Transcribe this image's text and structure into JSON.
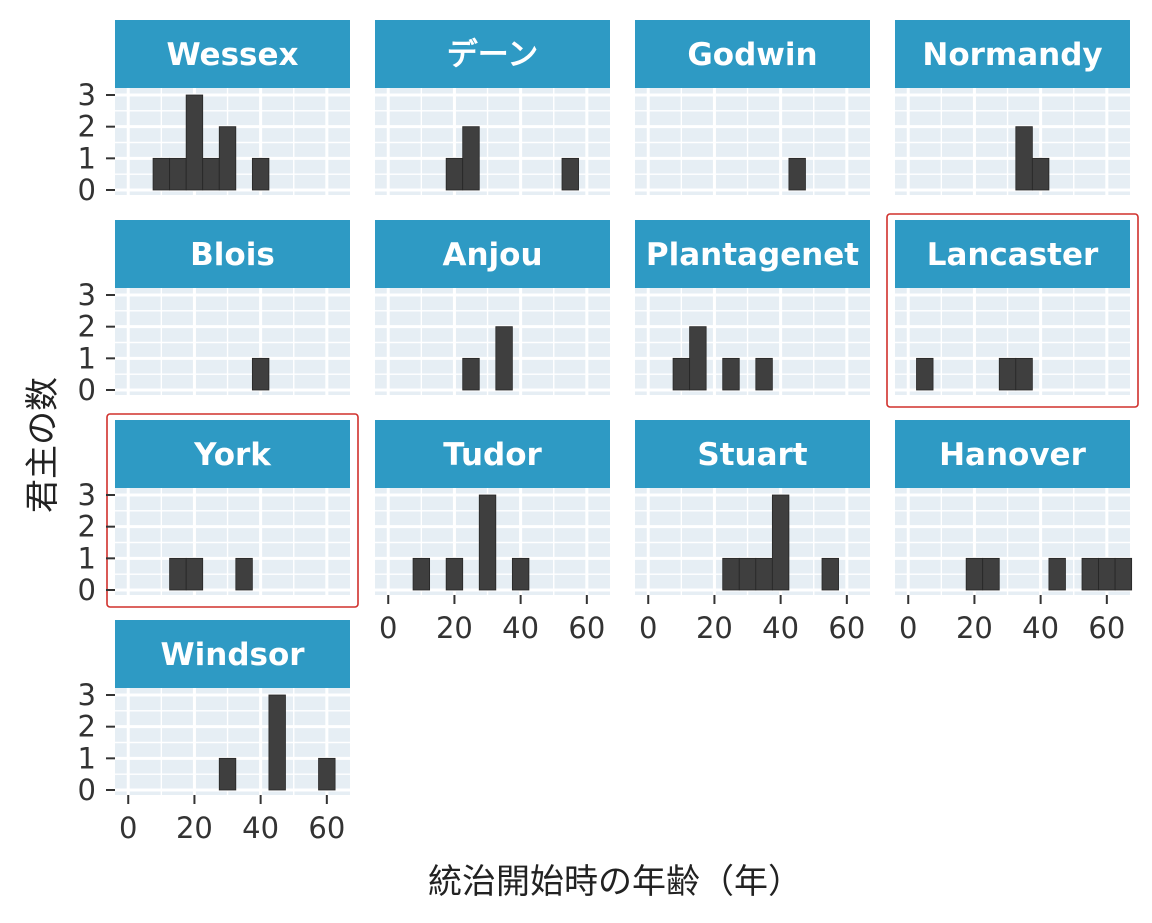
{
  "colors": {
    "strip": "#2e9ac4",
    "strip_text": "#ffffff",
    "panel_bg": "#e6eef4",
    "grid": "#ffffff",
    "bar": "#3f3f3f",
    "highlight": "#d0302c",
    "axis_text": "#333333"
  },
  "chart_data": {
    "type": "bar",
    "subtype": "faceted-histogram",
    "xlabel": "統治開始時の年齢（年）",
    "ylabel": "君主の数",
    "xlim": [
      -4,
      67
    ],
    "ylim": [
      0,
      3
    ],
    "x_ticks": [
      "0",
      "20",
      "40",
      "60"
    ],
    "y_ticks": [
      "0",
      "1",
      "2",
      "3"
    ],
    "bin_width": 5,
    "grid": true,
    "highlighted_panels": [
      "Lancaster",
      "York"
    ],
    "panels": [
      {
        "name": "Wessex",
        "bins": [
          {
            "x0": 7.5,
            "x1": 12.5,
            "count": 1
          },
          {
            "x0": 12.5,
            "x1": 17.5,
            "count": 1
          },
          {
            "x0": 17.5,
            "x1": 22.5,
            "count": 3
          },
          {
            "x0": 22.5,
            "x1": 27.5,
            "count": 1
          },
          {
            "x0": 27.5,
            "x1": 32.5,
            "count": 2
          },
          {
            "x0": 37.5,
            "x1": 42.5,
            "count": 1
          }
        ]
      },
      {
        "name": "デーン",
        "bins": [
          {
            "x0": 17.5,
            "x1": 22.5,
            "count": 1
          },
          {
            "x0": 22.5,
            "x1": 27.5,
            "count": 2
          },
          {
            "x0": 52.5,
            "x1": 57.5,
            "count": 1
          }
        ]
      },
      {
        "name": "Godwin",
        "bins": [
          {
            "x0": 42.5,
            "x1": 47.5,
            "count": 1
          }
        ]
      },
      {
        "name": "Normandy",
        "bins": [
          {
            "x0": 32.5,
            "x1": 37.5,
            "count": 2
          },
          {
            "x0": 37.5,
            "x1": 42.5,
            "count": 1
          }
        ]
      },
      {
        "name": "Blois",
        "bins": [
          {
            "x0": 37.5,
            "x1": 42.5,
            "count": 1
          }
        ]
      },
      {
        "name": "Anjou",
        "bins": [
          {
            "x0": 22.5,
            "x1": 27.5,
            "count": 1
          },
          {
            "x0": 32.5,
            "x1": 37.5,
            "count": 2
          }
        ]
      },
      {
        "name": "Plantagenet",
        "bins": [
          {
            "x0": 7.5,
            "x1": 12.5,
            "count": 1
          },
          {
            "x0": 12.5,
            "x1": 17.5,
            "count": 2
          },
          {
            "x0": 22.5,
            "x1": 27.5,
            "count": 1
          },
          {
            "x0": 32.5,
            "x1": 37.5,
            "count": 1
          }
        ]
      },
      {
        "name": "Lancaster",
        "bins": [
          {
            "x0": 2.5,
            "x1": 7.5,
            "count": 1
          },
          {
            "x0": 27.5,
            "x1": 32.5,
            "count": 1
          },
          {
            "x0": 32.5,
            "x1": 37.5,
            "count": 1
          }
        ]
      },
      {
        "name": "York",
        "bins": [
          {
            "x0": 12.5,
            "x1": 17.5,
            "count": 1
          },
          {
            "x0": 17.5,
            "x1": 22.5,
            "count": 1
          },
          {
            "x0": 32.5,
            "x1": 37.5,
            "count": 1
          }
        ]
      },
      {
        "name": "Tudor",
        "bins": [
          {
            "x0": 7.5,
            "x1": 12.5,
            "count": 1
          },
          {
            "x0": 17.5,
            "x1": 22.5,
            "count": 1
          },
          {
            "x0": 27.5,
            "x1": 32.5,
            "count": 3
          },
          {
            "x0": 37.5,
            "x1": 42.5,
            "count": 1
          }
        ]
      },
      {
        "name": "Stuart",
        "bins": [
          {
            "x0": 22.5,
            "x1": 27.5,
            "count": 1
          },
          {
            "x0": 27.5,
            "x1": 32.5,
            "count": 1
          },
          {
            "x0": 32.5,
            "x1": 37.5,
            "count": 1
          },
          {
            "x0": 37.5,
            "x1": 42.5,
            "count": 3
          },
          {
            "x0": 52.5,
            "x1": 57.5,
            "count": 1
          }
        ]
      },
      {
        "name": "Hanover",
        "bins": [
          {
            "x0": 17.5,
            "x1": 22.5,
            "count": 1
          },
          {
            "x0": 22.5,
            "x1": 27.5,
            "count": 1
          },
          {
            "x0": 42.5,
            "x1": 47.5,
            "count": 1
          },
          {
            "x0": 52.5,
            "x1": 57.5,
            "count": 1
          },
          {
            "x0": 57.5,
            "x1": 62.5,
            "count": 1
          },
          {
            "x0": 62.5,
            "x1": 67.5,
            "count": 1
          }
        ]
      },
      {
        "name": "Windsor",
        "bins": [
          {
            "x0": 27.5,
            "x1": 32.5,
            "count": 1
          },
          {
            "x0": 42.5,
            "x1": 47.5,
            "count": 3
          },
          {
            "x0": 57.5,
            "x1": 62.5,
            "count": 1
          }
        ]
      }
    ]
  }
}
